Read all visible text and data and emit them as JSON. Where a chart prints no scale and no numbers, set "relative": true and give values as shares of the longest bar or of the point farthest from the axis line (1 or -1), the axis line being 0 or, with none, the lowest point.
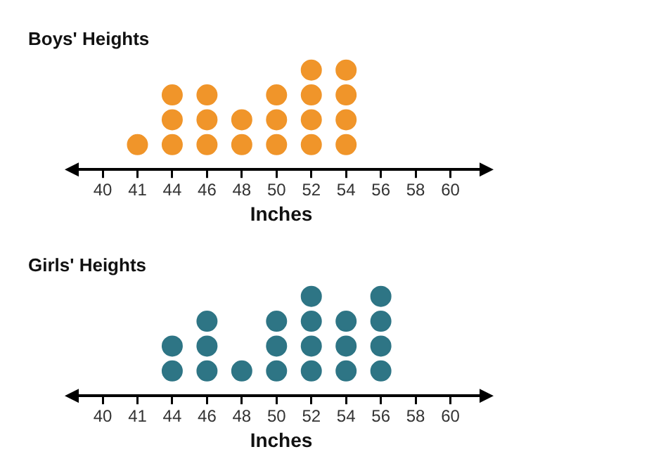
{
  "chart_data": [
    {
      "type": "scatter",
      "title": "Boys' Heights",
      "xlabel": "Inches",
      "relative": true,
      "marker": "circle",
      "categories": [
        "40",
        "41",
        "44",
        "46",
        "48",
        "50",
        "52",
        "54",
        "56",
        "58",
        "60"
      ],
      "series": [
        {
          "color": "#f0952a",
          "x": [
            "41",
            "44",
            "44",
            "44",
            "46",
            "46",
            "46",
            "48",
            "48",
            "50",
            "50",
            "50",
            "52",
            "52",
            "52",
            "52",
            "54",
            "54",
            "54",
            "54"
          ],
          "values": [
            0.25,
            0.25,
            0.5,
            0.75,
            0.25,
            0.5,
            0.75,
            0.25,
            0.5,
            0.25,
            0.5,
            0.75,
            0.25,
            0.5,
            0.75,
            1,
            0.25,
            0.5,
            0.75,
            1
          ]
        }
      ]
    },
    {
      "type": "scatter",
      "title": "Girls' Heights",
      "xlabel": "Inches",
      "relative": true,
      "marker": "circle",
      "categories": [
        "40",
        "41",
        "44",
        "46",
        "48",
        "50",
        "52",
        "54",
        "56",
        "58",
        "60"
      ],
      "series": [
        {
          "color": "#2e7585",
          "x": [
            "44",
            "44",
            "46",
            "46",
            "46",
            "48",
            "50",
            "50",
            "50",
            "52",
            "52",
            "52",
            "52",
            "54",
            "54",
            "54",
            "56",
            "56",
            "56",
            "56"
          ],
          "values": [
            0.25,
            0.5,
            0.25,
            0.5,
            0.75,
            0.25,
            0.25,
            0.5,
            0.75,
            0.25,
            0.5,
            0.75,
            1,
            0.25,
            0.5,
            0.75,
            0.25,
            0.5,
            0.75,
            1
          ]
        }
      ]
    }
  ]
}
